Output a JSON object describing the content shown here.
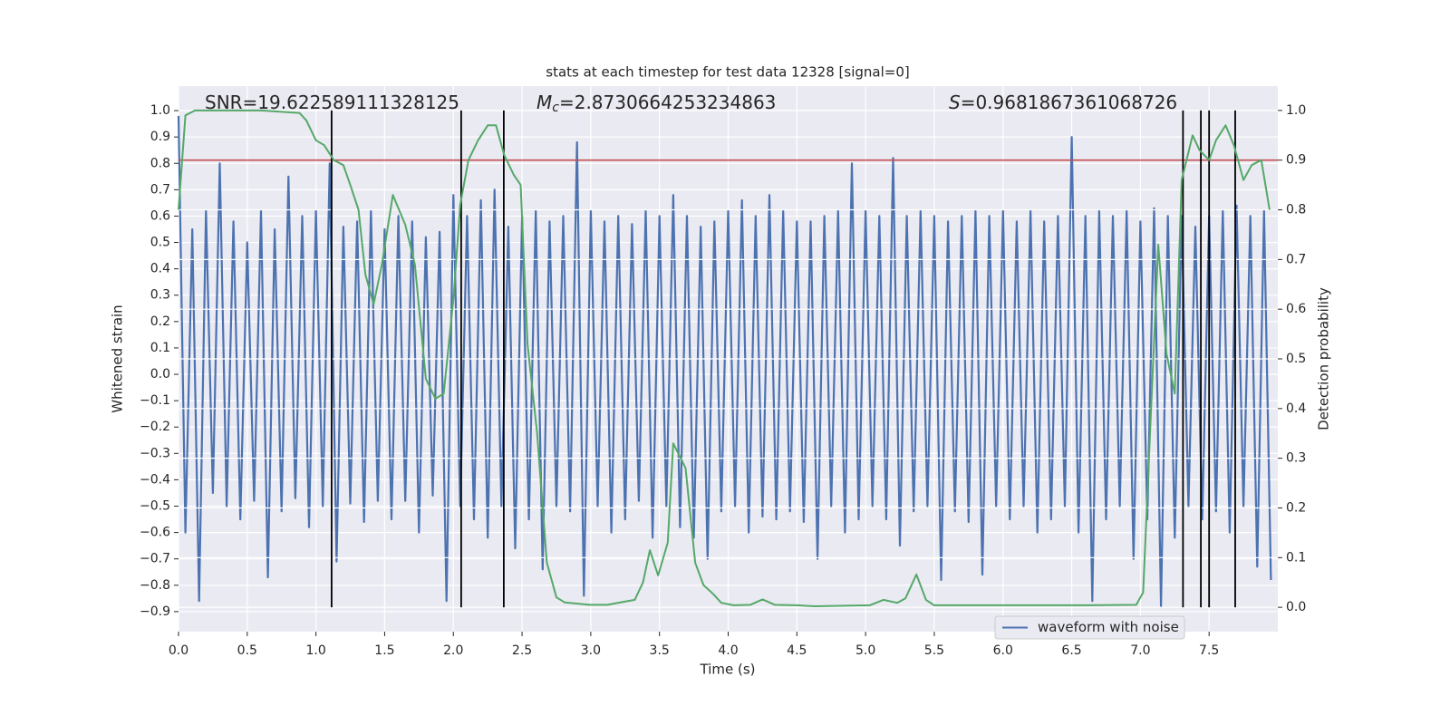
{
  "chart_data": {
    "type": "line",
    "title": "stats at each timestep for test data 12328 [signal=0]",
    "x_label": "Time (s)",
    "y_label": "Whitened strain",
    "y2_label": "Detection probability",
    "xlim": [
      0,
      8
    ],
    "ylim": [
      -0.976,
      1.093
    ],
    "y2lim": [
      -0.049,
      1.049
    ],
    "xticks": [
      {
        "value": 0,
        "label": "0.0"
      },
      0.5,
      {
        "value": 1,
        "label": "1.0"
      },
      1.5,
      {
        "value": 2,
        "label": "2.0"
      },
      2.5,
      {
        "value": 3,
        "label": "3.0"
      },
      3.5,
      {
        "value": 4,
        "label": "4.0"
      },
      4.5,
      {
        "value": 5,
        "label": "5.0"
      },
      5.5,
      {
        "value": 6,
        "label": "6.0"
      },
      6.5,
      {
        "value": 7,
        "label": "7.0"
      },
      7.5
    ],
    "yticks": [
      {
        "value": 1,
        "label": "1.0"
      },
      0.9,
      0.8,
      0.7,
      0.6,
      0.5,
      0.4,
      0.3,
      0.2,
      0.1,
      {
        "value": 0,
        "label": "0.0"
      },
      {
        "value": -0.1,
        "label": "−0.1"
      },
      {
        "value": -0.2,
        "label": "−0.2"
      },
      {
        "value": -0.3,
        "label": "−0.3"
      },
      {
        "value": -0.4,
        "label": "−0.4"
      },
      {
        "value": -0.5,
        "label": "−0.5"
      },
      {
        "value": -0.6,
        "label": "−0.6"
      },
      {
        "value": -0.7,
        "label": "−0.7"
      },
      {
        "value": -0.8,
        "label": "−0.8"
      },
      {
        "value": -0.9,
        "label": "−0.9"
      }
    ],
    "y2ticks": [
      {
        "value": 0,
        "label": "0.0"
      },
      0.1,
      0.2,
      0.3,
      0.4,
      0.5,
      0.6,
      0.7,
      0.8,
      0.9,
      {
        "value": 1,
        "label": "1.0"
      }
    ],
    "grid": true,
    "legend": "lower right",
    "annotations": [
      {
        "text": "SNR=19.622589111328125"
      },
      {
        "symbol": "M",
        "sub": "c",
        "text": "=2.8730664253234863"
      },
      {
        "symbol": "S",
        "text": "=0.9681867361068726"
      }
    ],
    "threshold": {
      "value": 0.9,
      "axis": "y2",
      "color": "#c44e52"
    },
    "vlines": {
      "x": [
        1.114,
        2.057,
        2.367,
        7.31,
        7.44,
        7.5,
        7.69
      ],
      "color": "#000000"
    },
    "series": [
      {
        "name": "waveform with noise",
        "color": "#4c72b0",
        "x": [
          0,
          0.05,
          0.1,
          0.15,
          0.2,
          0.25,
          0.3,
          0.35,
          0.4,
          0.45,
          0.5,
          0.55,
          0.6,
          0.65,
          0.7,
          0.75,
          0.8,
          0.85,
          0.9,
          0.95,
          1,
          1.05,
          1.1,
          1.15,
          1.2,
          1.25,
          1.3,
          1.35,
          1.4,
          1.45,
          1.5,
          1.55,
          1.6,
          1.65,
          1.7,
          1.75,
          1.8,
          1.85,
          1.9,
          1.95,
          2,
          2.05,
          2.1,
          2.15,
          2.2,
          2.25,
          2.3,
          2.35,
          2.4,
          2.45,
          2.5,
          2.55,
          2.6,
          2.65,
          2.7,
          2.75,
          2.8,
          2.85,
          2.9,
          2.95,
          3,
          3.05,
          3.1,
          3.15,
          3.2,
          3.25,
          3.3,
          3.35,
          3.4,
          3.45,
          3.5,
          3.55,
          3.6,
          3.65,
          3.7,
          3.75,
          3.8,
          3.85,
          3.9,
          3.95,
          4,
          4.05,
          4.1,
          4.15,
          4.2,
          4.25,
          4.3,
          4.35,
          4.4,
          4.45,
          4.5,
          4.55,
          4.6,
          4.65,
          4.7,
          4.75,
          4.8,
          4.85,
          4.9,
          4.95,
          5,
          5.05,
          5.1,
          5.15,
          5.2,
          5.25,
          5.3,
          5.35,
          5.4,
          5.45,
          5.5,
          5.55,
          5.6,
          5.65,
          5.7,
          5.75,
          5.8,
          5.85,
          5.9,
          5.95,
          6,
          6.05,
          6.1,
          6.15,
          6.2,
          6.25,
          6.3,
          6.35,
          6.4,
          6.45,
          6.5,
          6.55,
          6.6,
          6.65,
          6.7,
          6.75,
          6.8,
          6.85,
          6.9,
          6.95,
          7,
          7.05,
          7.1,
          7.15,
          7.2,
          7.25,
          7.3,
          7.35,
          7.4,
          7.45,
          7.5,
          7.55,
          7.6,
          7.65,
          7.7,
          7.75,
          7.8,
          7.85,
          7.9,
          7.95
        ],
        "values": [
          0.98,
          -0.6,
          0.55,
          -0.86,
          0.62,
          -0.45,
          0.8,
          -0.5,
          0.58,
          -0.55,
          0.5,
          -0.48,
          0.62,
          -0.77,
          0.55,
          -0.52,
          0.75,
          -0.47,
          0.6,
          -0.58,
          0.62,
          -0.5,
          0.8,
          -0.71,
          0.56,
          -0.49,
          0.58,
          -0.56,
          0.62,
          -0.48,
          0.55,
          -0.55,
          0.6,
          -0.48,
          0.58,
          -0.6,
          0.52,
          -0.46,
          0.54,
          -0.86,
          0.68,
          -0.5,
          0.6,
          -0.55,
          0.66,
          -0.62,
          0.7,
          -0.5,
          0.56,
          -0.66,
          0.6,
          -0.55,
          0.62,
          -0.74,
          0.58,
          -0.5,
          0.6,
          -0.52,
          0.88,
          -0.84,
          0.62,
          -0.5,
          0.58,
          -0.6,
          0.6,
          -0.55,
          0.57,
          -0.48,
          0.62,
          -0.62,
          0.6,
          -0.5,
          0.68,
          -0.58,
          0.6,
          -0.62,
          0.56,
          -0.7,
          0.58,
          -0.52,
          0.62,
          -0.5,
          0.66,
          -0.6,
          0.6,
          -0.54,
          0.68,
          -0.55,
          0.62,
          -0.52,
          0.58,
          -0.56,
          0.58,
          -0.7,
          0.6,
          -0.5,
          0.62,
          -0.6,
          0.8,
          -0.55,
          0.62,
          -0.5,
          0.6,
          -0.55,
          0.82,
          -0.65,
          0.6,
          -0.52,
          0.62,
          -0.5,
          0.6,
          -0.78,
          0.58,
          -0.52,
          0.6,
          -0.56,
          0.62,
          -0.76,
          0.6,
          -0.5,
          0.62,
          -0.55,
          0.58,
          -0.5,
          0.62,
          -0.6,
          0.58,
          -0.55,
          0.6,
          -0.5,
          0.9,
          -0.6,
          0.6,
          -0.86,
          0.62,
          -0.55,
          0.6,
          -0.5,
          0.62,
          -0.7,
          0.58,
          -0.55,
          0.63,
          -0.88,
          0.6,
          -0.62,
          0.6,
          -0.5,
          0.56,
          -0.55,
          0.6,
          -0.52,
          0.62,
          -0.6,
          0.64,
          -0.5,
          0.6,
          -0.73,
          0.62,
          -0.78
        ]
      },
      {
        "color": "#55a868",
        "axis": "y2",
        "x": [
          0,
          0.05,
          0.12,
          0.6,
          0.88,
          0.93,
          1.0,
          1.06,
          1.13,
          1.2,
          1.25,
          1.31,
          1.36,
          1.42,
          1.48,
          1.56,
          1.65,
          1.72,
          1.8,
          1.87,
          1.93,
          2.0,
          2.05,
          2.11,
          2.18,
          2.25,
          2.31,
          2.37,
          2.44,
          2.49,
          2.54,
          2.61,
          2.68,
          2.75,
          2.81,
          2.99,
          3.12,
          3.32,
          3.38,
          3.43,
          3.49,
          3.56,
          3.6,
          3.69,
          3.76,
          3.82,
          3.89,
          3.95,
          4.04,
          4.16,
          4.25,
          4.34,
          4.5,
          4.63,
          5.03,
          5.13,
          5.23,
          5.29,
          5.37,
          5.44,
          5.5,
          5.69,
          5.95,
          6.61,
          6.97,
          7.02,
          7.07,
          7.13,
          7.19,
          7.25,
          7.3,
          7.38,
          7.43,
          7.5,
          7.55,
          7.62,
          7.68,
          7.75,
          7.81,
          7.88,
          7.94
        ],
        "values": [
          0.8,
          0.99,
          1.0,
          1.0,
          0.995,
          0.98,
          0.94,
          0.93,
          0.9,
          0.89,
          0.85,
          0.8,
          0.67,
          0.61,
          0.69,
          0.83,
          0.77,
          0.69,
          0.46,
          0.42,
          0.43,
          0.62,
          0.81,
          0.9,
          0.94,
          0.97,
          0.97,
          0.91,
          0.87,
          0.85,
          0.53,
          0.35,
          0.09,
          0.02,
          0.01,
          0.005,
          0.005,
          0.015,
          0.05,
          0.115,
          0.064,
          0.13,
          0.33,
          0.28,
          0.09,
          0.045,
          0.027,
          0.009,
          0.004,
          0.005,
          0.016,
          0.005,
          0.004,
          0.002,
          0.004,
          0.015,
          0.009,
          0.018,
          0.066,
          0.015,
          0.004,
          0.004,
          0.004,
          0.004,
          0.005,
          0.03,
          0.35,
          0.73,
          0.51,
          0.43,
          0.86,
          0.95,
          0.92,
          0.9,
          0.94,
          0.97,
          0.93,
          0.86,
          0.89,
          0.9,
          0.8
        ]
      }
    ]
  }
}
